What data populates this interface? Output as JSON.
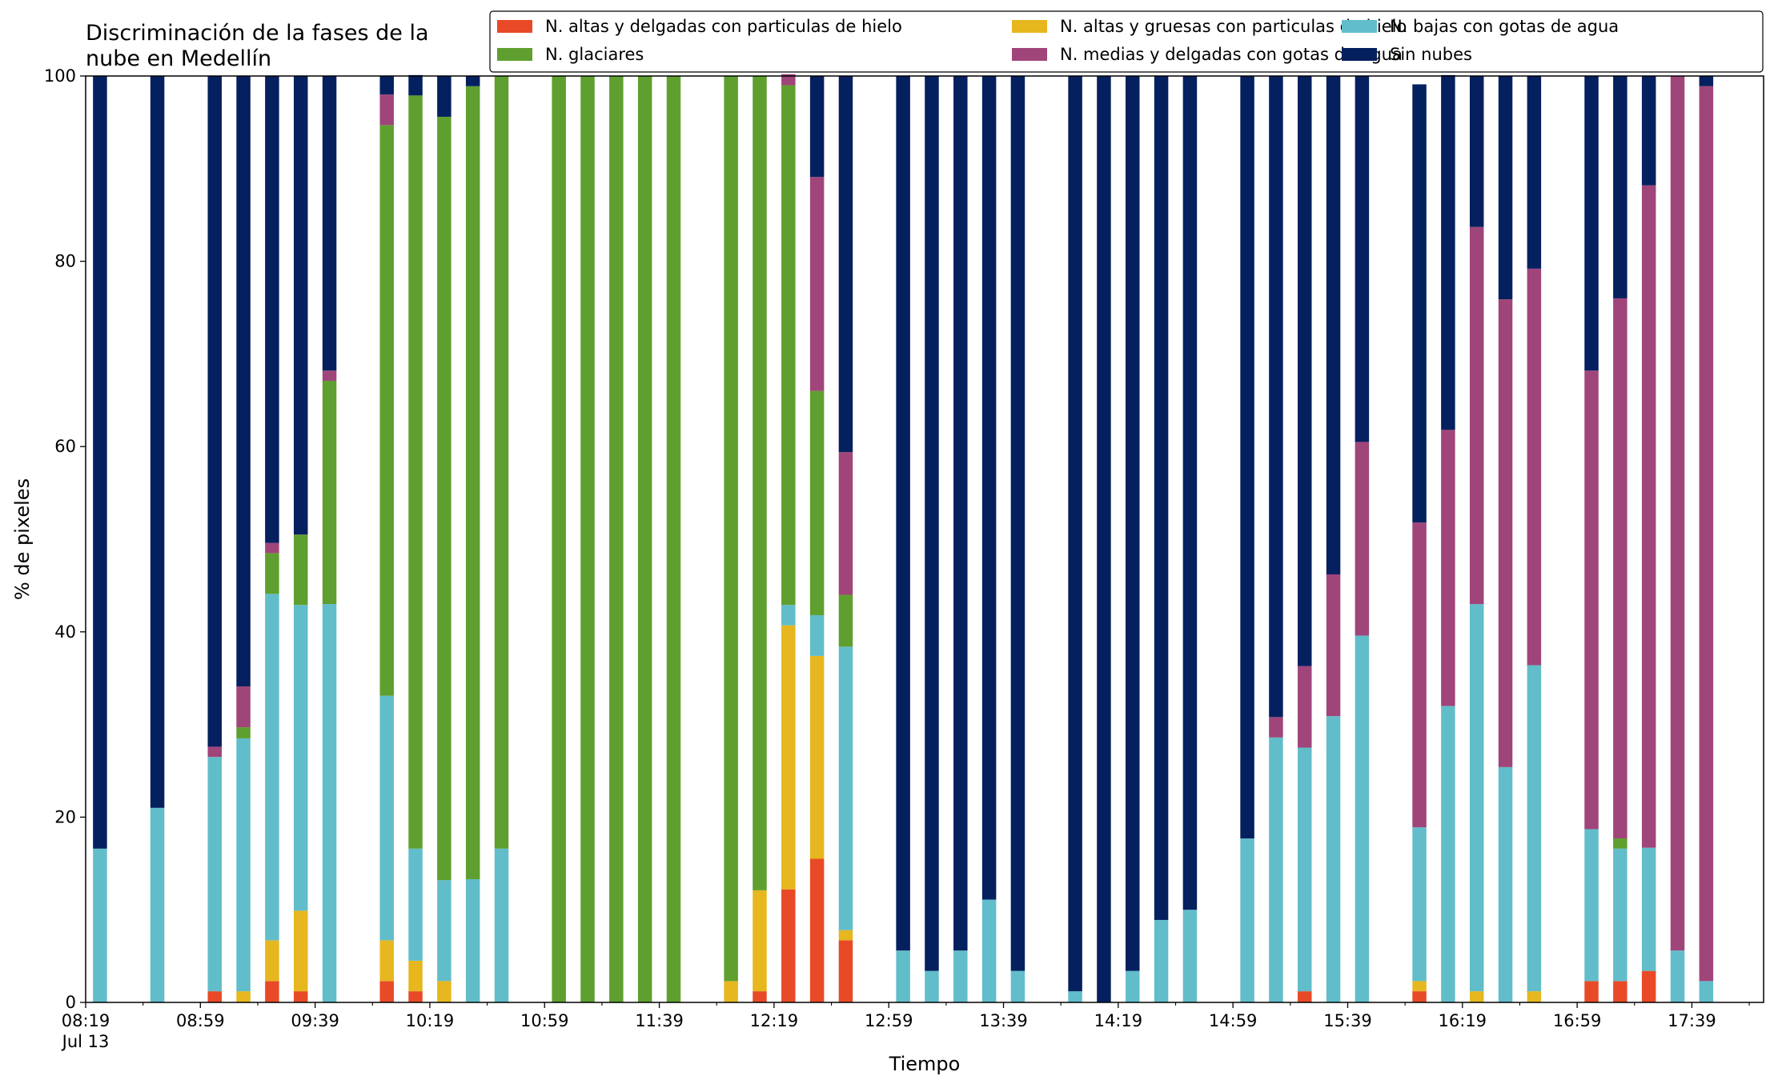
{
  "chart_data": {
    "type": "bar",
    "stacked": true,
    "title": "Discriminación de la fases de la nube en Medellín",
    "title_lines": [
      "Discriminación de la fases de la",
      "nube en Medellín"
    ],
    "xlabel": "Tiempo",
    "ylabel": "% de pixeles",
    "ylim": [
      0,
      100
    ],
    "yticks": [
      0,
      20,
      40,
      60,
      80,
      100
    ],
    "xlim": [
      "08:19",
      "18:04"
    ],
    "xtick_labels": [
      "08:19",
      "08:59",
      "09:39",
      "10:19",
      "10:59",
      "11:39",
      "12:19",
      "12:59",
      "13:39",
      "14:19",
      "14:59",
      "15:39",
      "16:19",
      "16:59",
      "17:39"
    ],
    "xtick_sublabel": "Jul 13",
    "grid": false,
    "legend_position": "top",
    "x": [
      "08:24",
      "08:44",
      "09:04",
      "09:14",
      "09:24",
      "09:34",
      "09:44",
      "10:04",
      "10:14",
      "10:24",
      "10:34",
      "10:44",
      "11:04",
      "11:14",
      "11:24",
      "11:34",
      "11:44",
      "12:04",
      "12:14",
      "12:24",
      "12:34",
      "12:44",
      "13:04",
      "13:14",
      "13:24",
      "13:34",
      "13:44",
      "14:04",
      "14:14",
      "14:24",
      "14:34",
      "14:44",
      "15:04",
      "15:14",
      "15:24",
      "15:34",
      "15:44",
      "16:04",
      "16:14",
      "16:24",
      "16:34",
      "16:44",
      "17:04",
      "17:14",
      "17:24",
      "17:34",
      "17:44"
    ],
    "series": [
      {
        "name": "N. altas y delgadas con particulas de hielo",
        "color": "#e84a27",
        "values": [
          0,
          0,
          1.2,
          0,
          2.3,
          1.2,
          0,
          2.3,
          1.2,
          0,
          0,
          0,
          0,
          0,
          0,
          0,
          0,
          0,
          1.2,
          12.2,
          15.5,
          6.7,
          0,
          0,
          0,
          0,
          0,
          0,
          0,
          0,
          0,
          0,
          0,
          0,
          1.2,
          0,
          0,
          1.2,
          0,
          0,
          0,
          0,
          2.3,
          2.3,
          3.4,
          0,
          0
        ]
      },
      {
        "name": "N. altas y gruesas con particulas de hielo",
        "color": "#e6b71e",
        "values": [
          0,
          0,
          0,
          1.2,
          4.4,
          8.7,
          0,
          4.4,
          3.3,
          2.3,
          0,
          0,
          0,
          0,
          0,
          0,
          0,
          2.3,
          10.9,
          28.5,
          21.9,
          1.1,
          0,
          0,
          0,
          0,
          0,
          0,
          0,
          0,
          0,
          0,
          0,
          0,
          0,
          0,
          0,
          1.1,
          0,
          1.2,
          0,
          1.2,
          0,
          0,
          0,
          0,
          0
        ]
      },
      {
        "name": "N. bajas con gotas de agua",
        "color": "#62bdca",
        "values": [
          16.6,
          21.0,
          25.3,
          27.3,
          37.4,
          33.0,
          43.0,
          26.4,
          12.1,
          10.9,
          13.3,
          16.6,
          0,
          0,
          0,
          0,
          0,
          0,
          0,
          2.2,
          4.4,
          30.6,
          5.6,
          3.4,
          5.6,
          11.1,
          3.4,
          1.2,
          0,
          3.4,
          8.9,
          10.0,
          17.7,
          28.6,
          26.3,
          30.9,
          39.6,
          16.6,
          32.0,
          41.8,
          25.4,
          35.2,
          16.4,
          14.3,
          13.3,
          5.6,
          2.3
        ]
      },
      {
        "name": "N. glaciares",
        "color": "#5f9f2f",
        "values": [
          0,
          0,
          0,
          1.2,
          4.4,
          7.6,
          24.1,
          61.6,
          81.3,
          82.4,
          85.6,
          83.4,
          100,
          100,
          100,
          100,
          100,
          97.7,
          87.9,
          56.1,
          24.2,
          5.6,
          0,
          0,
          0,
          0,
          0,
          0,
          0,
          0,
          0,
          0,
          0,
          0,
          0,
          0,
          0,
          0,
          0,
          0,
          0,
          0,
          0,
          1.1,
          0,
          0,
          0
        ]
      },
      {
        "name": "N. medias y delgadas con gotas de agua",
        "color": "#a0457a",
        "values": [
          0,
          0,
          1.1,
          4.4,
          1.1,
          0,
          1.1,
          3.3,
          0,
          0,
          0,
          0,
          0,
          0,
          0,
          0,
          0,
          0,
          0,
          1.2,
          23.1,
          15.4,
          0,
          0,
          0,
          0,
          0,
          0,
          0,
          0,
          0,
          0,
          0,
          2.2,
          8.8,
          15.3,
          20.9,
          32.9,
          29.8,
          40.7,
          50.5,
          42.8,
          49.5,
          58.3,
          71.5,
          94.4,
          96.6
        ]
      },
      {
        "name": "Sin nubes",
        "color": "#05205f",
        "values": [
          83.4,
          79.0,
          72.4,
          65.9,
          50.4,
          49.5,
          31.8,
          2.0,
          2.2,
          4.4,
          1.1,
          0,
          0,
          0,
          0,
          0,
          0,
          0,
          0,
          0,
          10.9,
          40.6,
          94.4,
          96.6,
          94.4,
          88.9,
          96.6,
          98.8,
          100,
          96.6,
          91.1,
          90.0,
          82.3,
          69.2,
          63.7,
          53.8,
          39.5,
          47.3,
          38.3,
          16.3,
          24.1,
          20.8,
          31.8,
          24.0,
          11.8,
          0,
          1.1
        ]
      }
    ]
  }
}
